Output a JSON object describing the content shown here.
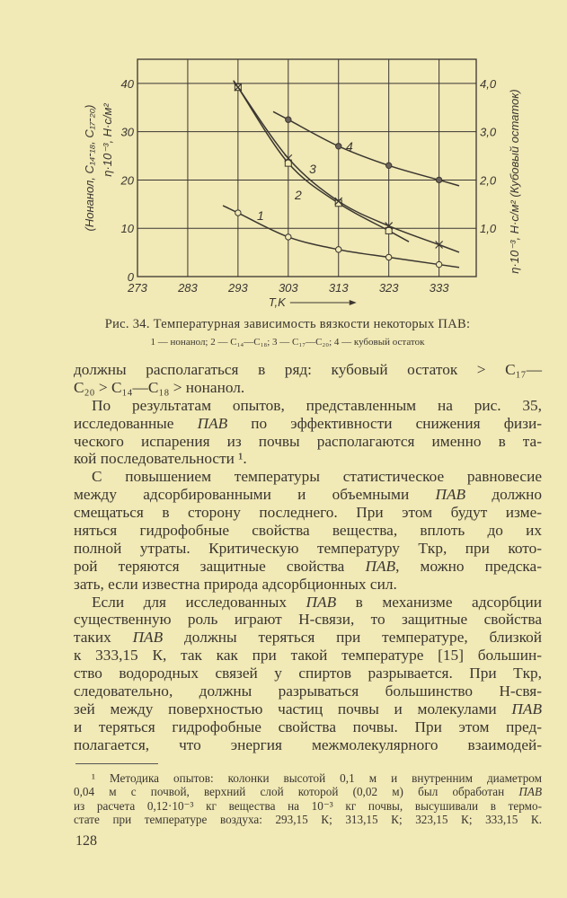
{
  "chart_data": {
    "type": "line",
    "xlabel": "T,K",
    "ylabel_left": [
      "(Нонанол, C₁₄-₁₈, C₁₇-₂₀)",
      "η·10⁻³, Н·с/м²"
    ],
    "ylabel_right": "η·10⁻³, Н·с/м² (Кубовый остаток)",
    "x_ticks": [
      "273",
      "283",
      "293",
      "303",
      "313",
      "323",
      "333"
    ],
    "y_ticks_left": [
      "0",
      "10",
      "20",
      "30",
      "40"
    ],
    "y_ticks_right": [
      "1,0",
      "2,0",
      "3,0",
      "4,0"
    ],
    "xlim": [
      273,
      340.4
    ],
    "ylim_left": [
      0,
      45
    ],
    "ylim_right": [
      0,
      4.5
    ],
    "grid": true,
    "series": [
      {
        "label": "1",
        "marker": "circle",
        "axis": "left",
        "x": [
          293,
          303,
          313,
          323,
          333
        ],
        "y": [
          13.2,
          8.2,
          5.6,
          4.0,
          2.5
        ]
      },
      {
        "label": "2",
        "marker": "square",
        "axis": "left",
        "x": [
          293,
          303,
          313,
          323
        ],
        "y": [
          39.2,
          23.5,
          15.2,
          9.5
        ]
      },
      {
        "label": "3",
        "marker": "cross",
        "axis": "left",
        "x": [
          293,
          303,
          313,
          323,
          333
        ],
        "y": [
          39.2,
          24.5,
          15.6,
          10.5,
          6.6
        ]
      },
      {
        "label": "4",
        "marker": "dot",
        "axis": "right",
        "x": [
          303,
          313,
          323,
          333
        ],
        "y": [
          3.25,
          2.7,
          2.3,
          2.0
        ]
      }
    ]
  },
  "caption": {
    "title": "Рис. 34. Температурная зависимость вязкости некоторых ПАВ:",
    "legend": "1 — нонанол; 2 — C₁₄—C₁₈; 3 — C₁₇—C₂₀; 4 — кубовый остаток"
  },
  "body_lines": [
    {
      "t": "должны располагаться в ряд: кубовый остаток > C₁₇—"
    },
    {
      "t": "C₂₀ > C₁₄—C₁₈ > нонанол.",
      "end": true
    },
    {
      "t": "По результатам опытов, представленным на рис. 35,",
      "ind": true
    },
    {
      "t": "исследованные ПАВ по эффективности снижения физи-"
    },
    {
      "t": "ческого испарения из почвы располагаются именно в та-"
    },
    {
      "t": "кой последовательности ¹.",
      "end": true
    },
    {
      "t": "С повышением температуры статистическое равновесие",
      "ind": true
    },
    {
      "t": "между адсорбированными и объемными ПАВ должно"
    },
    {
      "t": "смещаться в сторону последнего. При этом будут изме-"
    },
    {
      "t": "няться гидрофобные свойства вещества, вплоть до их"
    },
    {
      "t": "полной утраты. Критическую температуру Tкр, при кото-"
    },
    {
      "t": "рой теряются защитные свойства ПАВ, можно предска-"
    },
    {
      "t": "зать, если известна природа адсорбционных сил.",
      "end": true
    },
    {
      "t": "Если для исследованных ПАВ в механизме адсорбции",
      "ind": true
    },
    {
      "t": "существенную роль играют H-связи, то защитные свойства"
    },
    {
      "t": "таких ПАВ должны теряться при температуре, близкой"
    },
    {
      "t": "к 333,15 К, так как при такой температуре [15] большин-"
    },
    {
      "t": "ство водородных связей у спиртов разрывается. При Tкр,"
    },
    {
      "t": "следовательно, должны разрываться большинство H-свя-"
    },
    {
      "t": "зей между поверхностью частиц почвы и молекулами ПАВ"
    },
    {
      "t": "и теряться гидрофобные свойства почвы. При этом пред-"
    },
    {
      "t": "полагается, что энергия межмолекулярного взаимодей-"
    }
  ],
  "footnote_lines": [
    {
      "t": "¹ Методика опытов: колонки высотой 0,1 м и внутренним диаметром",
      "ind": true
    },
    {
      "t": "0,04 м с почвой, верхний слой которой (0,02 м) был обработан ПАВ"
    },
    {
      "t": "из расчета 0,12·10⁻³ кг вещества на 10⁻³ кг почвы, высушивали в термо-"
    },
    {
      "t": "стате при температуре воздуха: 293,15 К; 313,15 К; 323,15 К; 333,15 К."
    }
  ],
  "page_number": "128",
  "colors": {
    "paper": "#f1e9b6",
    "ink": "#3a3630"
  }
}
